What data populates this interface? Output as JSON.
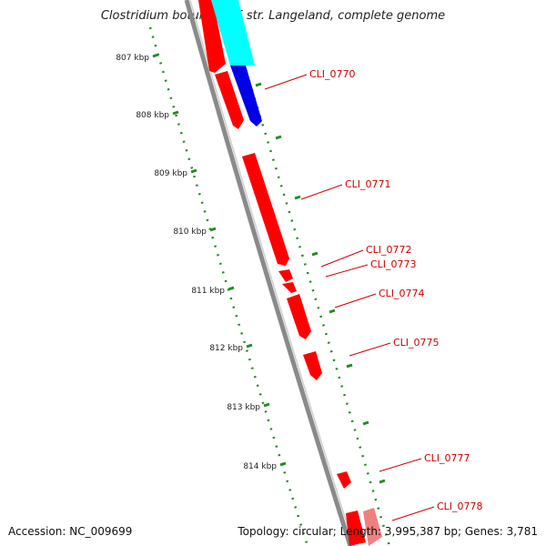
{
  "title": "Clostridium botulinum F str. Langeland, complete genome",
  "accession": "Accession: NC_009699",
  "summary": "Topology: circular; Length: 3,995,387 bp; Genes: 3,781",
  "ticks": [
    {
      "label": "807 kbp",
      "kbp": 807
    },
    {
      "label": "808 kbp",
      "kbp": 808
    },
    {
      "label": "809 kbp",
      "kbp": 809
    },
    {
      "label": "810 kbp",
      "kbp": 810
    },
    {
      "label": "811 kbp",
      "kbp": 811
    },
    {
      "label": "812 kbp",
      "kbp": 812
    },
    {
      "label": "813 kbp",
      "kbp": 813
    },
    {
      "label": "814 kbp",
      "kbp": 814
    }
  ],
  "gene_labels": [
    "CLI_0770",
    "CLI_0771",
    "CLI_0772",
    "CLI_0773",
    "CLI_0774",
    "CLI_0775",
    "CLI_0777",
    "CLI_0778"
  ],
  "colors": {
    "gene_forward": "#ff0000",
    "gene_highlight": "#0000e6",
    "gene_cyan": "#00ffff",
    "gene_pink": "#f08080",
    "backbone": "#888888",
    "tick": "#228b22",
    "label_text": "#cc0000"
  }
}
